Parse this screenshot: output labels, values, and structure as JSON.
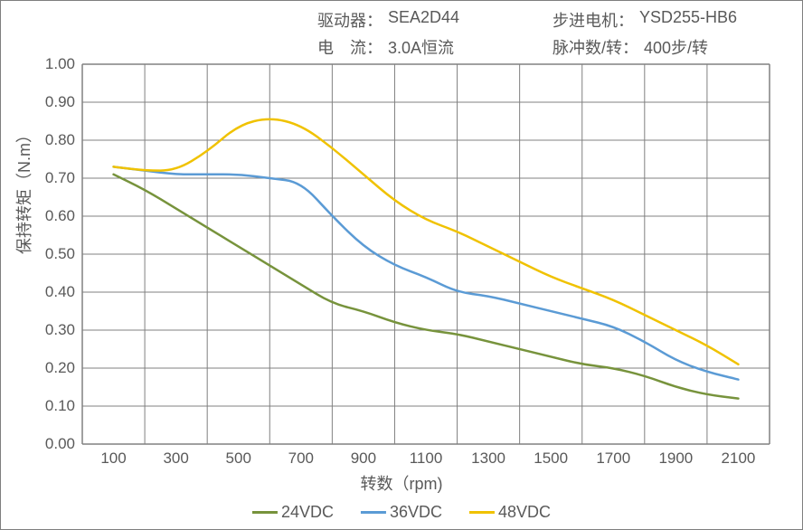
{
  "header": {
    "row1": {
      "left_label": "驱动器：",
      "left_value": "SEA2D44",
      "right_label": "步进电机：",
      "right_value": "YSD255-HB6"
    },
    "row2": {
      "left_label": "电　流：",
      "left_value": "3.0A恒流",
      "right_label": "脉冲数/转：",
      "right_value": "400步/转"
    }
  },
  "chart": {
    "type": "line",
    "background_color": "#ffffff",
    "border_color": "#7f7f7f",
    "grid_color": "#808080",
    "axis_color": "#808080",
    "text_color": "#595959",
    "xlabel": "转数（rpm)",
    "ylabel": "保持转矩（N.m）",
    "label_fontsize": 18,
    "tick_fontsize": 17,
    "xlim": [
      0,
      2200
    ],
    "ylim": [
      0.0,
      1.0
    ],
    "xticks": [
      100,
      300,
      500,
      700,
      900,
      1100,
      1300,
      1500,
      1700,
      1900,
      2100
    ],
    "yticks": [
      0.0,
      0.1,
      0.2,
      0.3,
      0.4,
      0.5,
      0.6,
      0.7,
      0.8,
      0.9,
      1.0
    ],
    "xgrid": [
      0,
      200,
      400,
      600,
      800,
      1000,
      1200,
      1400,
      1600,
      1800,
      2000,
      2200
    ],
    "line_width": 2.5,
    "series": [
      {
        "name": "24VDC",
        "color": "#77933c",
        "x": [
          100,
          200,
          300,
          400,
          500,
          600,
          700,
          800,
          900,
          1000,
          1100,
          1200,
          1300,
          1400,
          1500,
          1600,
          1700,
          1800,
          1900,
          2000,
          2100
        ],
        "y": [
          0.71,
          0.67,
          0.62,
          0.57,
          0.52,
          0.47,
          0.42,
          0.37,
          0.35,
          0.32,
          0.3,
          0.29,
          0.27,
          0.25,
          0.23,
          0.21,
          0.2,
          0.18,
          0.15,
          0.13,
          0.12
        ]
      },
      {
        "name": "36VDC",
        "color": "#5b9bd5",
        "x": [
          100,
          200,
          300,
          400,
          500,
          600,
          700,
          800,
          900,
          1000,
          1100,
          1200,
          1300,
          1400,
          1500,
          1600,
          1700,
          1800,
          1900,
          2000,
          2100
        ],
        "y": [
          0.73,
          0.72,
          0.71,
          0.71,
          0.71,
          0.7,
          0.69,
          0.6,
          0.52,
          0.47,
          0.44,
          0.4,
          0.39,
          0.37,
          0.35,
          0.33,
          0.31,
          0.27,
          0.22,
          0.19,
          0.17
        ]
      },
      {
        "name": "48VDC",
        "color": "#f0c200",
        "x": [
          100,
          200,
          300,
          400,
          500,
          600,
          700,
          800,
          900,
          1000,
          1100,
          1200,
          1300,
          1400,
          1500,
          1600,
          1700,
          1800,
          1900,
          2000,
          2100
        ],
        "y": [
          0.73,
          0.72,
          0.72,
          0.77,
          0.84,
          0.86,
          0.84,
          0.78,
          0.71,
          0.64,
          0.59,
          0.56,
          0.52,
          0.48,
          0.44,
          0.41,
          0.38,
          0.34,
          0.3,
          0.26,
          0.21
        ]
      }
    ],
    "legend": {
      "items": [
        "24VDC",
        "36VDC",
        "48VDC"
      ],
      "colors": [
        "#77933c",
        "#5b9bd5",
        "#f0c200"
      ]
    }
  }
}
